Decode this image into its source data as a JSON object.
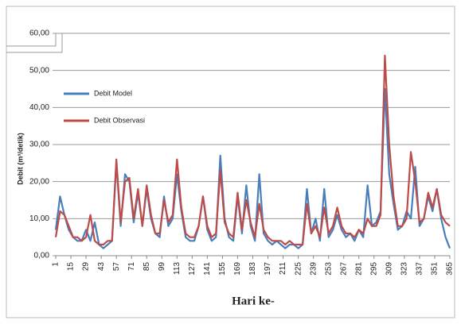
{
  "chart_data": {
    "type": "line",
    "y_label": "Debit (m³/detik)",
    "x_label": "Hari ke-",
    "xlim": [
      1,
      365
    ],
    "xticks": [
      1,
      15,
      29,
      43,
      57,
      71,
      85,
      99,
      113,
      127,
      141,
      155,
      169,
      183,
      197,
      211,
      225,
      239,
      253,
      267,
      281,
      295,
      309,
      323,
      337,
      351,
      365
    ],
    "ylim": [
      0,
      60
    ],
    "yticks": [
      {
        "value": 0,
        "label": "0,00"
      },
      {
        "value": 10,
        "label": "10,00"
      },
      {
        "value": 20,
        "label": "20,00"
      },
      {
        "value": 30,
        "label": "30,00"
      },
      {
        "value": 40,
        "label": "40,00"
      },
      {
        "value": 50,
        "label": "50,00"
      },
      {
        "value": 60,
        "label": "60,00"
      }
    ],
    "grid": true,
    "legend": "upper left",
    "x": [
      1,
      5,
      9,
      13,
      17,
      21,
      25,
      29,
      33,
      37,
      41,
      45,
      49,
      53,
      57,
      61,
      65,
      69,
      73,
      77,
      81,
      85,
      89,
      93,
      97,
      101,
      105,
      109,
      113,
      117,
      121,
      125,
      129,
      133,
      137,
      141,
      145,
      149,
      153,
      157,
      161,
      165,
      169,
      173,
      177,
      181,
      185,
      189,
      193,
      197,
      201,
      205,
      209,
      213,
      217,
      221,
      225,
      229,
      233,
      237,
      241,
      245,
      249,
      253,
      257,
      261,
      265,
      269,
      273,
      277,
      281,
      285,
      289,
      293,
      297,
      301,
      305,
      309,
      313,
      317,
      321,
      325,
      329,
      333,
      337,
      341,
      345,
      349,
      353,
      357,
      361,
      365
    ],
    "series": [
      {
        "name": "Debit Model",
        "color": "#4a7ebb",
        "values": [
          7,
          16,
          11,
          7,
          5,
          4,
          4,
          7,
          4,
          9,
          3,
          2,
          3,
          4,
          25,
          8,
          22,
          20,
          9,
          17,
          8,
          18,
          10,
          6,
          5,
          16,
          8,
          10,
          22,
          12,
          5,
          4,
          4,
          8,
          16,
          7,
          4,
          5,
          27,
          10,
          5,
          4,
          16,
          6,
          19,
          8,
          4,
          22,
          6,
          4,
          3,
          4,
          3,
          2,
          3,
          3,
          2,
          3,
          18,
          6,
          10,
          4,
          18,
          5,
          7,
          11,
          7,
          5,
          6,
          4,
          7,
          5,
          19,
          8,
          9,
          12,
          45,
          22,
          14,
          7,
          8,
          12,
          10,
          24,
          8,
          10,
          16,
          12,
          18,
          10,
          5,
          2
        ]
      },
      {
        "name": "Debit Observasi",
        "color": "#be4b48",
        "values": [
          5,
          12,
          11,
          8,
          5,
          5,
          4,
          5,
          11,
          4,
          3,
          3,
          4,
          4,
          26,
          9,
          20,
          21,
          10,
          18,
          8,
          19,
          11,
          6,
          6,
          15,
          9,
          11,
          26,
          13,
          6,
          5,
          5,
          8,
          16,
          8,
          5,
          6,
          23,
          9,
          6,
          5,
          17,
          7,
          15,
          9,
          5,
          14,
          7,
          5,
          4,
          4,
          4,
          3,
          4,
          3,
          3,
          3,
          14,
          6,
          8,
          5,
          13,
          6,
          8,
          13,
          8,
          6,
          6,
          5,
          7,
          6,
          10,
          8,
          8,
          11,
          54,
          30,
          16,
          8,
          8,
          10,
          28,
          20,
          9,
          10,
          17,
          13,
          18,
          11,
          9,
          8
        ]
      }
    ]
  }
}
